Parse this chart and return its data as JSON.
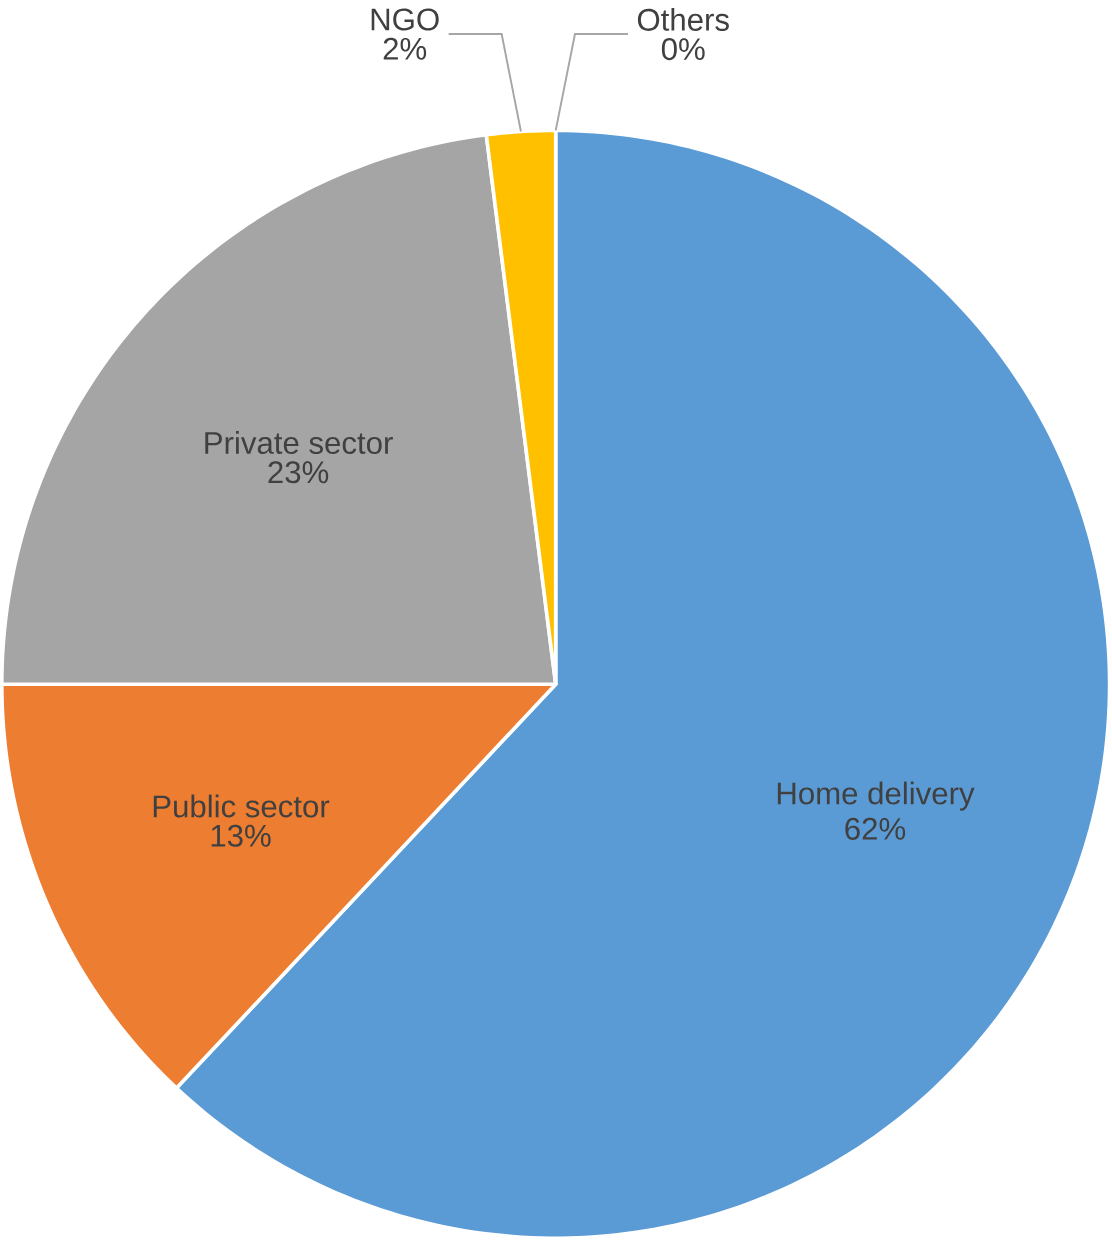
{
  "chart_data": {
    "type": "pie",
    "categories": [
      "Home delivery",
      "Public sector",
      "Private sector",
      "NGO",
      "Others"
    ],
    "values": [
      62,
      13,
      23,
      2,
      0
    ],
    "value_labels": [
      "62%",
      "13%",
      "23%",
      "2%",
      "0%"
    ],
    "colors": [
      "#5b9bd5",
      "#ed7d31",
      "#a5a5a5",
      "#ffc000",
      "#4472c4"
    ]
  }
}
